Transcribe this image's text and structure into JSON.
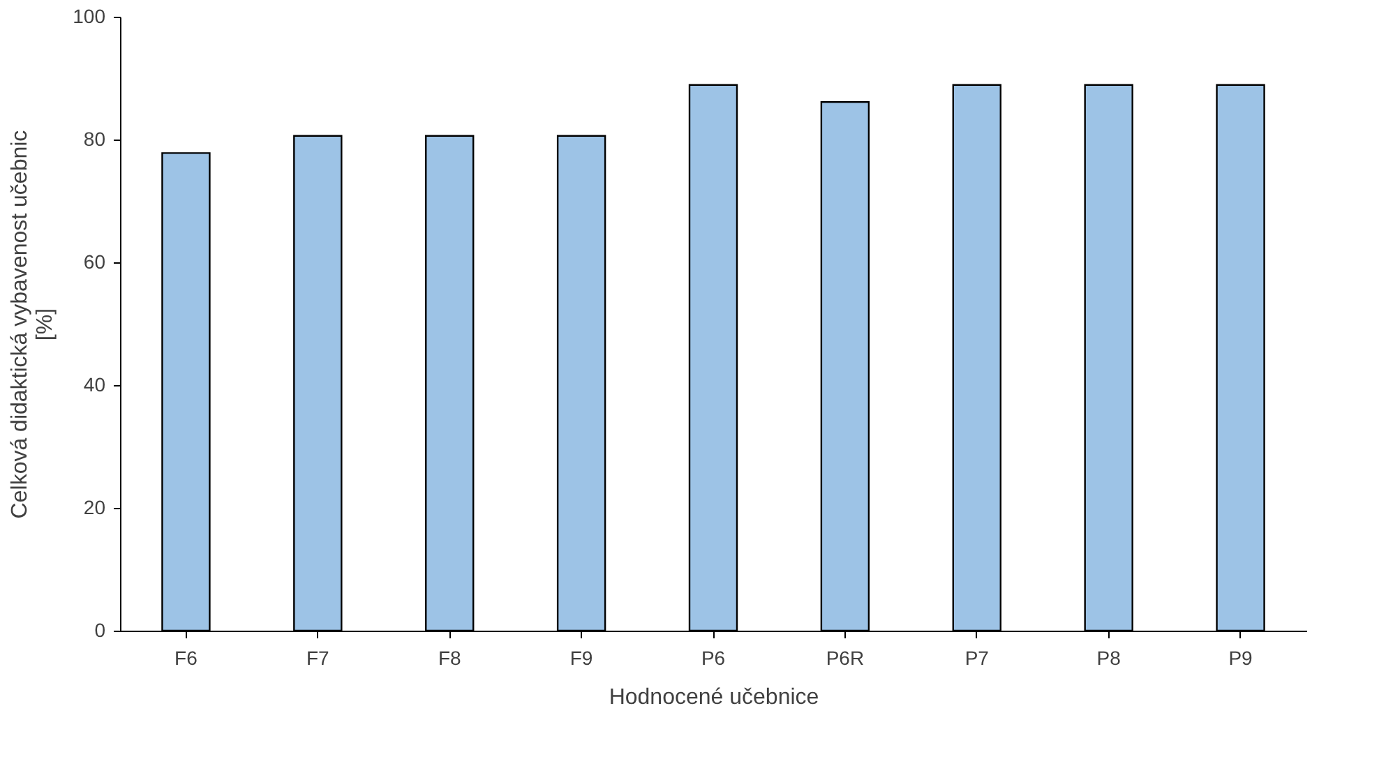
{
  "chart_data": {
    "type": "bar",
    "xlabel": "Hodnocené učebnice",
    "ylabel": "Celková didaktická vybavenost učebnic [%]",
    "categories": [
      "F6",
      "F7",
      "F8",
      "F9",
      "P6",
      "P6R",
      "P7",
      "P8",
      "P9"
    ],
    "values": [
      77.8,
      80.6,
      80.6,
      80.6,
      88.9,
      86.1,
      88.9,
      88.9,
      88.9
    ],
    "color": "#9dc3e6",
    "ylim": [
      0,
      100
    ],
    "yticks": [
      0,
      20,
      40,
      60,
      80,
      100
    ],
    "grid": false
  }
}
